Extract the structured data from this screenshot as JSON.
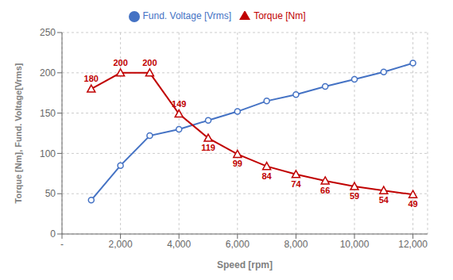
{
  "chart_data": {
    "type": "line",
    "x": [
      1000,
      2000,
      3000,
      4000,
      5000,
      6000,
      7000,
      8000,
      9000,
      10000,
      11000,
      12000
    ],
    "series": [
      {
        "name": "Fund. Voltage [Vrms]",
        "color": "#4472C4",
        "marker": "circle",
        "values": [
          42,
          85,
          122,
          130,
          141,
          152,
          165,
          173,
          183,
          192,
          201,
          212
        ]
      },
      {
        "name": "Torque [Nm]",
        "color": "#C00000",
        "marker": "triangle",
        "data_labels": true,
        "values": [
          180,
          200,
          200,
          149,
          119,
          99,
          84,
          74,
          66,
          59,
          54,
          49
        ]
      }
    ],
    "xlabel": "Speed [rpm]",
    "ylabel": "Torque [Nm], Fund. Voltage[Vrms]",
    "xlim": [
      0,
      12500
    ],
    "ylim": [
      0,
      250
    ],
    "xticks": [
      {
        "value": 0,
        "label": "-"
      },
      {
        "value": 2000,
        "label": "2,000"
      },
      {
        "value": 4000,
        "label": "4,000"
      },
      {
        "value": 6000,
        "label": "6,000"
      },
      {
        "value": 8000,
        "label": "8,000"
      },
      {
        "value": 10000,
        "label": "10,000"
      },
      {
        "value": 12000,
        "label": "12,000"
      }
    ],
    "yticks": [
      0,
      50,
      100,
      150,
      200,
      250
    ],
    "grid": true,
    "legend": "top"
  }
}
